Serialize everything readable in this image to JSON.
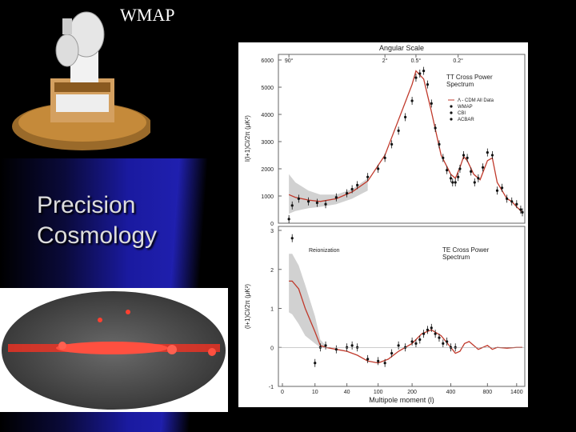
{
  "slide": {
    "title": "WMAP",
    "headline_line1": "Precision",
    "headline_line2": "Cosmology"
  },
  "colors": {
    "background": "#000000",
    "panel_blue": "#2020b0",
    "curve_red": "#c0392b",
    "band_gray": "#bdbdbd"
  },
  "chart_data": [
    {
      "type": "line",
      "title": "TT Cross Power Spectrum",
      "top_axis_label": "Angular Scale",
      "top_ticks": [
        "90°",
        "2°",
        "0.5°",
        "0.2°"
      ],
      "ylabel": "l(l+1)Cl/2π (μK²)",
      "ylim": [
        0,
        6000
      ],
      "yticks": [
        0,
        1000,
        2000,
        3000,
        4000,
        5000,
        6000
      ],
      "legend": [
        {
          "name": "Λ - CDM All Data",
          "symbol": "line"
        },
        {
          "name": "WMAP",
          "symbol": "dot"
        },
        {
          "name": "CBI",
          "symbol": "dot"
        },
        {
          "name": "ACBAR",
          "symbol": "dot"
        }
      ],
      "series": [
        {
          "name": "Λ - CDM All Data",
          "x": [
            2,
            4,
            8,
            15,
            30,
            50,
            80,
            120,
            160,
            200,
            220,
            260,
            300,
            350,
            400,
            450,
            500,
            540,
            580,
            650,
            720,
            800,
            900,
            1000,
            1100,
            1200,
            1300,
            1400,
            1600
          ],
          "y": [
            1050,
            950,
            850,
            800,
            900,
            1150,
            1550,
            2500,
            3800,
            5100,
            5600,
            5300,
            4100,
            2500,
            1800,
            1650,
            2050,
            2450,
            2300,
            1800,
            1600,
            2300,
            2400,
            1500,
            1200,
            900,
            800,
            600,
            400
          ]
        },
        {
          "name": "WMAP",
          "x": [
            2,
            3,
            5,
            8,
            12,
            20,
            30,
            40,
            50,
            60,
            80,
            100,
            120,
            140,
            160,
            180,
            200,
            220,
            240,
            260,
            280,
            300,
            320,
            340,
            360,
            380,
            400,
            420,
            450,
            480,
            500,
            540,
            580,
            620,
            660,
            700,
            750
          ],
          "y": [
            150,
            650,
            900,
            800,
            750,
            700,
            950,
            1100,
            1250,
            1400,
            1700,
            2000,
            2400,
            2900,
            3400,
            3900,
            4500,
            5350,
            5500,
            5600,
            5100,
            4400,
            3500,
            2900,
            2400,
            1950,
            1650,
            1500,
            1500,
            1700,
            2000,
            2500,
            2400,
            1900,
            1500,
            1650,
            2050
          ]
        },
        {
          "name": "ACBAR",
          "x": [
            800,
            900,
            1000,
            1100,
            1200,
            1300,
            1400,
            1500,
            1600
          ],
          "y": [
            2600,
            2500,
            1200,
            1300,
            900,
            800,
            700,
            500,
            400
          ]
        }
      ],
      "band": {
        "x": [
          2,
          4,
          8,
          15,
          30,
          50,
          80
        ],
        "y_low": [
          350,
          450,
          550,
          600,
          700,
          900,
          1200
        ],
        "y_high": [
          1800,
          1500,
          1200,
          1050,
          1050,
          1250,
          1650
        ]
      }
    },
    {
      "type": "line",
      "title": "TE Cross Power Spectrum",
      "annotation": "Reionization",
      "xlabel": "Multipole moment (l)",
      "ylabel": "(l+1)Cl/2π (μK²)",
      "ylim": [
        -1,
        3
      ],
      "yticks": [
        -1,
        0,
        1,
        2,
        3
      ],
      "xticks": [
        "0",
        "10",
        "40",
        "100",
        "200",
        "400",
        "800",
        "1400"
      ],
      "series": [
        {
          "name": "Λ - CDM All Data",
          "x": [
            2,
            3,
            5,
            7,
            10,
            15,
            20,
            30,
            40,
            60,
            80,
            100,
            130,
            160,
            200,
            250,
            300,
            350,
            400,
            450,
            500,
            550,
            600,
            700,
            800,
            900,
            1000,
            1200,
            1400,
            1600
          ],
          "y": [
            1.7,
            1.7,
            1.5,
            1.0,
            0.4,
            0.05,
            0.0,
            -0.05,
            -0.1,
            -0.2,
            -0.35,
            -0.4,
            -0.3,
            -0.1,
            0.1,
            0.35,
            0.45,
            0.3,
            0.0,
            -0.15,
            -0.1,
            0.1,
            0.15,
            -0.05,
            0.05,
            -0.05,
            0.0,
            -0.02,
            0.0,
            0.0
          ]
        },
        {
          "name": "WMAP",
          "x": [
            3,
            10,
            15,
            20,
            30,
            40,
            50,
            60,
            80,
            100,
            120,
            140,
            160,
            180,
            200,
            220,
            240,
            260,
            280,
            300,
            320,
            340,
            360,
            380,
            400,
            450
          ],
          "y": [
            2.8,
            -0.4,
            0.0,
            0.05,
            -0.05,
            0.0,
            0.05,
            0.0,
            -0.3,
            -0.35,
            -0.4,
            -0.15,
            0.05,
            0.0,
            0.15,
            0.1,
            0.2,
            0.35,
            0.45,
            0.5,
            0.35,
            0.25,
            0.1,
            0.15,
            0.0,
            0.0
          ]
        }
      ],
      "band": {
        "x": [
          2,
          3,
          5,
          7,
          10,
          15,
          20
        ],
        "y_low": [
          0.9,
          0.85,
          0.6,
          0.3,
          0.1,
          0.0,
          0.0
        ],
        "y_high": [
          2.4,
          2.4,
          2.1,
          1.6,
          0.8,
          0.2,
          0.05
        ]
      }
    }
  ]
}
